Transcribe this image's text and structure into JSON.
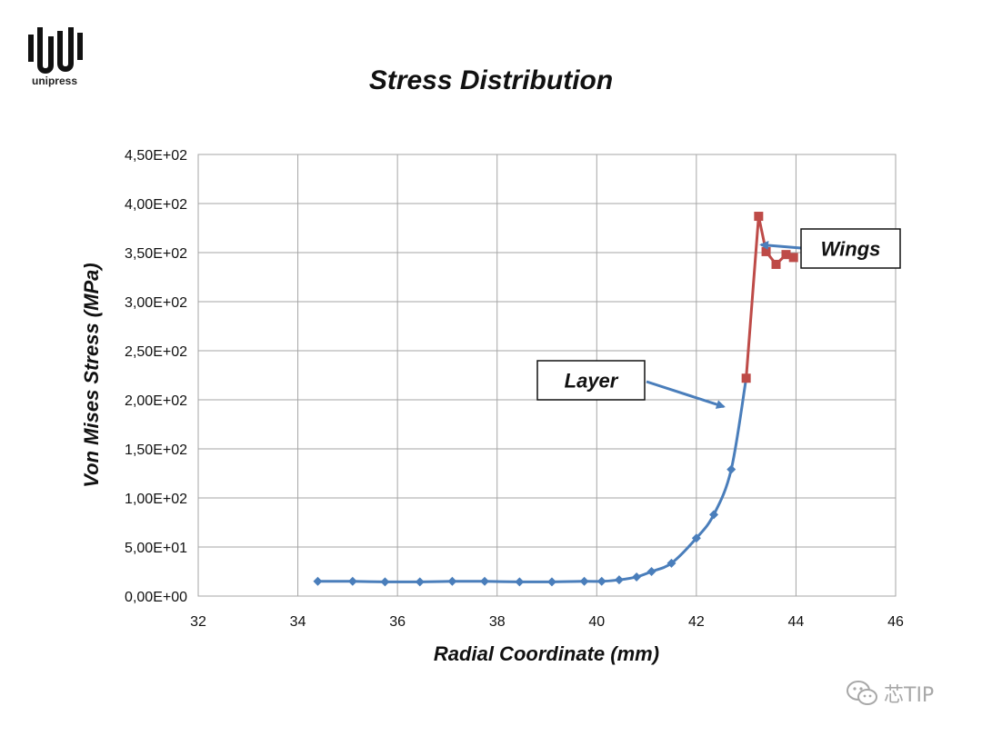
{
  "logo": {
    "text": "unipress"
  },
  "watermark": {
    "text": "芯TIP"
  },
  "colors": {
    "layer": "#4a7ebb",
    "wings": "#be4b48",
    "grid": "#a6a6a6"
  },
  "chart_data": {
    "type": "line",
    "title": "Stress Distribution",
    "xlabel": "Radial Coordinate (mm)",
    "ylabel": "Von Mises Stress (MPa)",
    "xlim": [
      32,
      46
    ],
    "ylim": [
      0,
      450
    ],
    "xticks": [
      32,
      34,
      36,
      38,
      40,
      42,
      44,
      46
    ],
    "xtick_labels": [
      "32",
      "34",
      "36",
      "38",
      "40",
      "42",
      "44",
      "46"
    ],
    "yticks": [
      0,
      50,
      100,
      150,
      200,
      250,
      300,
      350,
      400,
      450
    ],
    "ytick_labels": [
      "0,00E+00",
      "5,00E+01",
      "1,00E+02",
      "1,50E+02",
      "2,00E+02",
      "2,50E+02",
      "3,00E+02",
      "3,50E+02",
      "4,00E+02",
      "4,50E+02"
    ],
    "grid": true,
    "series": [
      {
        "name": "Layer",
        "color": "#4a7ebb",
        "marker": "diamond",
        "smooth": true,
        "x": [
          34.4,
          35.1,
          35.75,
          36.45,
          37.1,
          37.75,
          38.45,
          39.1,
          39.75,
          40.1,
          40.45,
          40.8,
          41.1,
          41.5,
          42.0,
          42.35,
          42.7,
          43.0
        ],
        "y": [
          15,
          15,
          14.5,
          14.5,
          15,
          15,
          14.5,
          14.5,
          15,
          15,
          16.5,
          19.5,
          25,
          33.5,
          59,
          83,
          129,
          222
        ]
      },
      {
        "name": "Wings",
        "color": "#be4b48",
        "marker": "square",
        "smooth": false,
        "x": [
          43.0,
          43.25,
          43.4,
          43.6,
          43.8,
          43.95
        ],
        "y": [
          222,
          387,
          351,
          338,
          348,
          345
        ]
      }
    ],
    "annotations": [
      {
        "text": "Layer",
        "target_x": 42.55,
        "target_y": 193
      },
      {
        "text": "Wings",
        "target_x": 43.3,
        "target_y": 358
      }
    ]
  }
}
